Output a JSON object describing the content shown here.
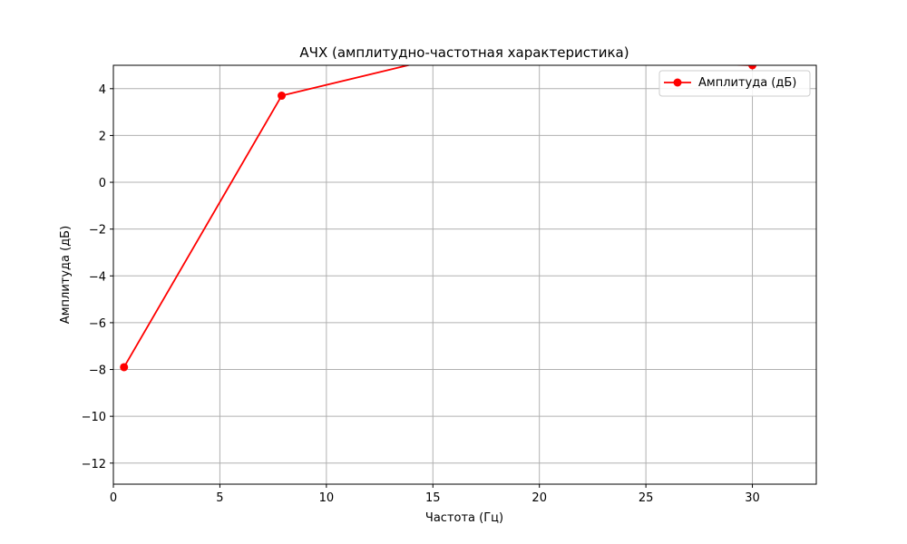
{
  "chart_data": {
    "type": "line",
    "title": "АЧХ (амплитудно-частотная характеристика)",
    "xlabel": "Частота (Гц)",
    "ylabel": "Амплитуда (дБ)",
    "xlim": [
      0,
      33
    ],
    "ylim": [
      -12.9,
      5.0
    ],
    "xticks": [
      0,
      5,
      10,
      15,
      20,
      25,
      30
    ],
    "yticks": [
      -12,
      -10,
      -8,
      -6,
      -4,
      -2,
      0,
      2,
      4
    ],
    "xtick_labels": [
      "0",
      "5",
      "10",
      "15",
      "20",
      "25",
      "30"
    ],
    "ytick_labels": [
      "−12",
      "−10",
      "−8",
      "−6",
      "−4",
      "−2",
      "0",
      "2",
      "4"
    ],
    "grid": true,
    "legend_position": "top-right",
    "series": [
      {
        "name": "Амплитуда (дБ)",
        "color": "#ff0000",
        "marker": "circle",
        "x": [
          0.5,
          7.9,
          15.2,
          30.0
        ],
        "y": [
          -7.9,
          3.7,
          5.3,
          5.0
        ]
      }
    ]
  }
}
